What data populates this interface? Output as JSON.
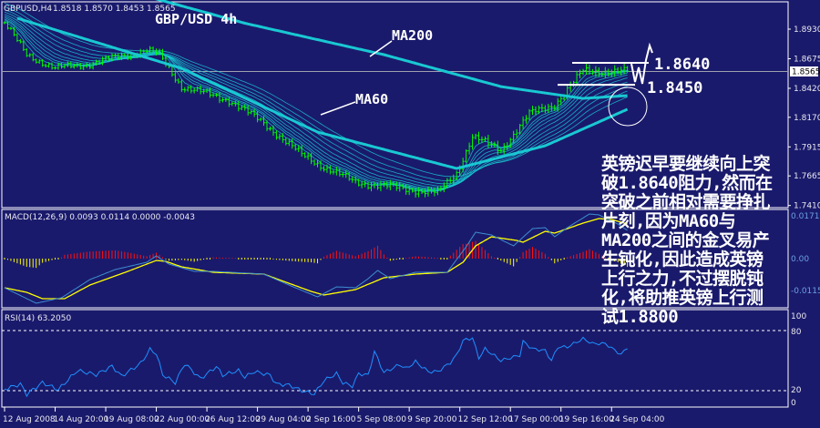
{
  "header": {
    "symbol": "GBPUSD,H4",
    "ohlc": "1.8518 1.8570 1.8453 1.8565"
  },
  "title": "GBP/USD 4h",
  "annotations": {
    "ma200": "MA200",
    "ma60": "MA60",
    "resistance": "1.8640",
    "support": "1.8450"
  },
  "comment_lines": [
    "英镑迟早要继续向上突",
    "破1.8640阻力,然而在",
    "突破之前相对需要挣扎",
    "片刻,因为MA60与",
    "MA200之间的金叉易产",
    "生钝化,因此造成英镑",
    "上行之力,不过摆脱钝",
    "化,将助推英镑上行测",
    "试1.8800"
  ],
  "colors": {
    "background": "#1a1a6c",
    "candles": "#00ff00",
    "ma": "#19c8d2",
    "macd_main": "#3d8fd0",
    "macd_signal": "#ffff00",
    "hist_pos": "#ff1010",
    "hist_neg": "#ffff00",
    "rsi": "#1e90ff"
  },
  "chart_data": [
    {
      "type": "line",
      "panel": "price",
      "ylim": [
        1.7392,
        1.9181
      ],
      "y_ticks": [
        "1.8930",
        "1.8675",
        "1.8420",
        "1.8170",
        "1.7915",
        "1.7665",
        "1.7410"
      ],
      "current_price": "1.8565",
      "x_ticks": [
        {
          "bar": 0,
          "label": "12 Aug 2008"
        },
        {
          "bar": 16,
          "label": "14 Aug 20:00"
        },
        {
          "bar": 32,
          "label": "19 Aug 08:00"
        },
        {
          "bar": 48,
          "label": "22 Aug 00:00"
        },
        {
          "bar": 64,
          "label": "26 Aug 12:00"
        },
        {
          "bar": 80,
          "label": "29 Aug 04:00"
        },
        {
          "bar": 96,
          "label": "2 Sep 16:00"
        },
        {
          "bar": 112,
          "label": "5 Sep 08:00"
        },
        {
          "bar": 128,
          "label": "9 Sep 20:00"
        },
        {
          "bar": 144,
          "label": "12 Sep 12:00"
        },
        {
          "bar": 160,
          "label": "17 Sep 00:00"
        },
        {
          "bar": 176,
          "label": "19 Sep 16:00"
        },
        {
          "bar": 192,
          "label": "24 Sep 04:00"
        }
      ],
      "price_close": [
        [
          0,
          1.8985
        ],
        [
          7,
          1.871
        ],
        [
          16,
          1.8592
        ],
        [
          27,
          1.8632
        ],
        [
          45,
          1.875
        ],
        [
          49,
          1.871
        ],
        [
          56,
          1.8435
        ],
        [
          71,
          1.8318
        ],
        [
          82,
          1.8121
        ],
        [
          94,
          1.7847
        ],
        [
          102,
          1.7729
        ],
        [
          111,
          1.7611
        ],
        [
          122,
          1.7572
        ],
        [
          137,
          1.7517
        ],
        [
          143,
          1.769
        ],
        [
          148,
          1.8004
        ],
        [
          157,
          1.7886
        ],
        [
          166,
          1.82
        ],
        [
          174,
          1.8279
        ],
        [
          183,
          1.8569
        ],
        [
          197,
          1.8565
        ]
      ],
      "ma200": [
        [
          40,
          1.925
        ],
        [
          76,
          1.8981
        ],
        [
          120,
          1.871
        ],
        [
          157,
          1.8435
        ],
        [
          183,
          1.8333
        ],
        [
          197,
          1.8357
        ]
      ],
      "ma60": [
        [
          4,
          1.9024
        ],
        [
          56,
          1.8592
        ],
        [
          99,
          1.8043
        ],
        [
          143,
          1.7729
        ],
        [
          171,
          1.7925
        ],
        [
          197,
          1.8239
        ]
      ],
      "levels": [
        1.864,
        1.845
      ]
    },
    {
      "type": "line",
      "panel": "macd",
      "label": "MACD(12,26,9) 0.0093 0.0114 0.0000 -0.0043",
      "y_ticks": [
        "0.0171",
        "0.00",
        "-0.0115"
      ],
      "main": [
        [
          0,
          -0.0096
        ],
        [
          10,
          -0.0147
        ],
        [
          18,
          -0.0129
        ],
        [
          27,
          -0.0069
        ],
        [
          35,
          -0.0036
        ],
        [
          45,
          -0.0012
        ],
        [
          48,
          0.0009
        ],
        [
          52,
          -0.0018
        ],
        [
          60,
          -0.0042
        ],
        [
          66,
          -0.0042
        ],
        [
          82,
          -0.0051
        ],
        [
          92,
          -0.0096
        ],
        [
          99,
          -0.0126
        ],
        [
          105,
          -0.0093
        ],
        [
          111,
          -0.0096
        ],
        [
          115,
          -0.0066
        ],
        [
          118,
          -0.0039
        ],
        [
          122,
          -0.0066
        ],
        [
          130,
          -0.0045
        ],
        [
          140,
          -0.0045
        ],
        [
          146,
          0.0039
        ],
        [
          149,
          0.0087
        ],
        [
          154,
          0.0078
        ],
        [
          161,
          0.0042
        ],
        [
          167,
          0.0099
        ],
        [
          171,
          0.0102
        ],
        [
          174,
          0.0072
        ],
        [
          178,
          0.0102
        ],
        [
          185,
          0.0147
        ],
        [
          188,
          0.0144
        ],
        [
          194,
          0.0114
        ],
        [
          197,
          0.0093
        ]
      ],
      "signal": [
        [
          0,
          -0.0096
        ],
        [
          7,
          -0.0111
        ],
        [
          12,
          -0.0132
        ],
        [
          19,
          -0.0132
        ],
        [
          27,
          -0.0087
        ],
        [
          39,
          -0.0042
        ],
        [
          48,
          -0.0006
        ],
        [
          51,
          -0.0009
        ],
        [
          56,
          -0.0027
        ],
        [
          66,
          -0.0045
        ],
        [
          82,
          -0.0051
        ],
        [
          97,
          -0.0108
        ],
        [
          101,
          -0.012
        ],
        [
          111,
          -0.0102
        ],
        [
          120,
          -0.0063
        ],
        [
          130,
          -0.0051
        ],
        [
          140,
          -0.0045
        ],
        [
          145,
          -0.0012
        ],
        [
          149,
          0.0042
        ],
        [
          154,
          0.0072
        ],
        [
          162,
          0.006
        ],
        [
          164,
          0.0054
        ],
        [
          171,
          0.009
        ],
        [
          174,
          0.0084
        ],
        [
          183,
          0.0117
        ],
        [
          188,
          0.0132
        ],
        [
          192,
          0.0129
        ],
        [
          197,
          0.0114
        ]
      ]
    },
    {
      "type": "line",
      "panel": "rsi",
      "label": "RSI(14) 63.2050",
      "ylim": [
        0,
        100
      ],
      "y_ticks": [
        "100",
        "80",
        "20",
        "0"
      ],
      "levels": [
        80,
        20
      ],
      "values": [
        [
          0,
          21.5
        ],
        [
          5,
          26.6
        ],
        [
          7,
          16.4
        ],
        [
          12,
          28
        ],
        [
          17,
          21
        ],
        [
          23,
          40
        ],
        [
          29,
          36
        ],
        [
          34,
          44.5
        ],
        [
          37,
          34.5
        ],
        [
          43,
          47
        ],
        [
          46,
          61
        ],
        [
          48,
          57
        ],
        [
          50,
          36
        ],
        [
          54,
          28
        ],
        [
          57,
          47
        ],
        [
          62,
          32
        ],
        [
          67,
          44
        ],
        [
          69,
          35.5
        ],
        [
          74,
          40
        ],
        [
          76,
          33.6
        ],
        [
          79,
          39
        ],
        [
          84,
          35.5
        ],
        [
          86,
          26.6
        ],
        [
          90,
          25.6
        ],
        [
          94,
          20
        ],
        [
          98,
          16.6
        ],
        [
          101,
          30
        ],
        [
          105,
          37
        ],
        [
          107,
          28
        ],
        [
          110,
          24.5
        ],
        [
          112,
          37
        ],
        [
          115,
          35.5
        ],
        [
          117,
          59
        ],
        [
          120,
          38
        ],
        [
          125,
          46
        ],
        [
          127,
          42
        ],
        [
          130,
          49
        ],
        [
          134,
          39
        ],
        [
          137,
          39
        ],
        [
          141,
          48
        ],
        [
          143,
          55.5
        ],
        [
          145,
          70
        ],
        [
          148,
          72.7
        ],
        [
          150,
          52.7
        ],
        [
          152,
          61.8
        ],
        [
          157,
          50
        ],
        [
          163,
          55.5
        ],
        [
          164,
          69
        ],
        [
          167,
          61.8
        ],
        [
          171,
          60
        ],
        [
          173,
          50
        ],
        [
          175,
          63.6
        ],
        [
          178,
          63.6
        ],
        [
          183,
          71.8
        ],
        [
          186,
          67
        ],
        [
          190,
          67
        ],
        [
          195,
          56
        ],
        [
          197,
          63.2
        ]
      ]
    }
  ]
}
